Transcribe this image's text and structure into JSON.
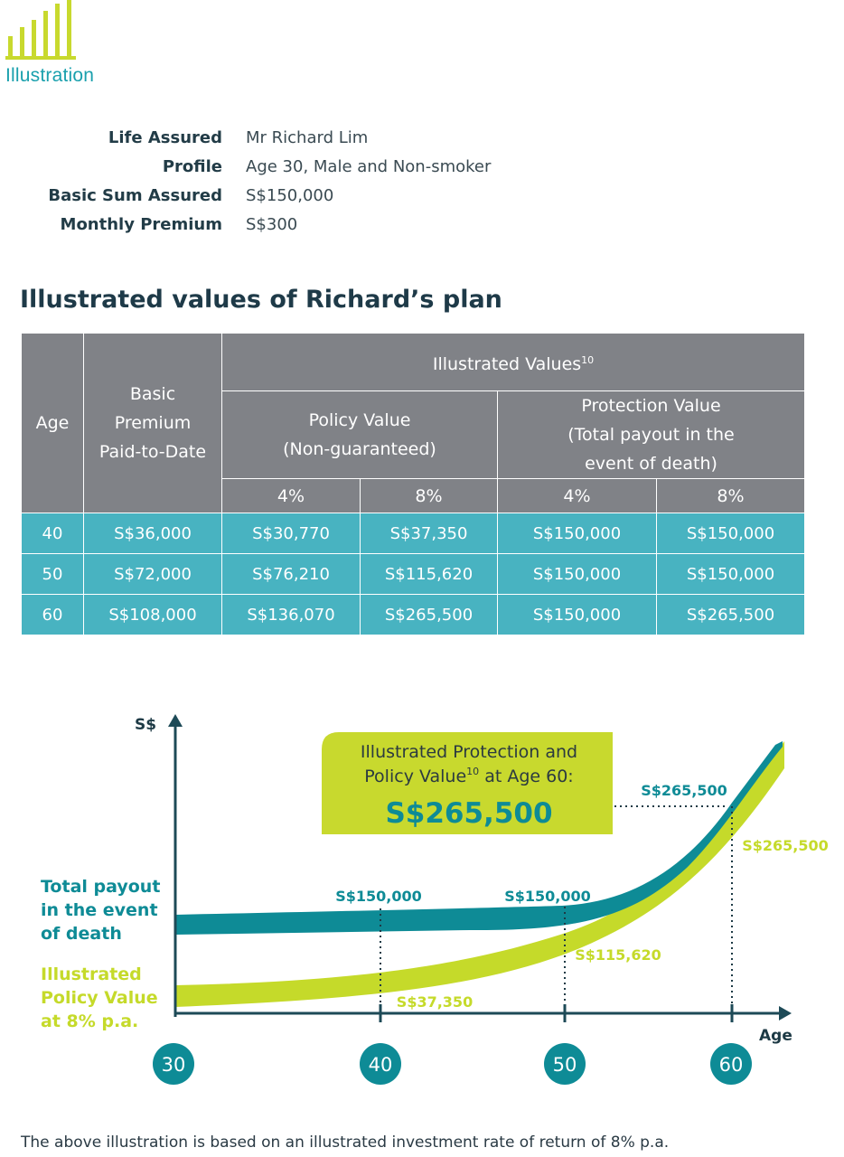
{
  "header": {
    "icon": "bar-chart-icon",
    "label": "Illustration",
    "accent_color": "#c8d92e",
    "teal_color": "#1aa0ad"
  },
  "info": {
    "rows": [
      {
        "key": "Life Assured",
        "value": "Mr Richard Lim"
      },
      {
        "key": "Profile",
        "value": "Age 30, Male and Non-smoker"
      },
      {
        "key": "Basic Sum Assured",
        "value": "S$150,000"
      },
      {
        "key": "Monthly Premium",
        "value": "S$300"
      }
    ]
  },
  "section_title": "Illustrated values of Richard’s plan",
  "table": {
    "col_age": "Age",
    "col_premium_l1": "Basic",
    "col_premium_l2": "Premium",
    "col_premium_l3": "Paid-to-Date",
    "illustrated_values": "Illustrated Values",
    "illustrated_values_sup": "10",
    "policy_value_l1": "Policy Value",
    "policy_value_l2": "(Non-guaranteed)",
    "protection_value_l1": "Protection Value",
    "protection_value_l2": "(Total payout in the",
    "protection_value_l3": "event of death)",
    "rate_4": "4%",
    "rate_8": "8%",
    "header_color": "#808287",
    "row_color": "#48b3c1",
    "rows": [
      [
        "40",
        "S$36,000",
        "S$30,770",
        "S$37,350",
        "S$150,000",
        "S$150,000"
      ],
      [
        "50",
        "S$72,000",
        "S$76,210",
        "S$115,620",
        "S$150,000",
        "S$150,000"
      ],
      [
        "60",
        "S$108,000",
        "S$136,070",
        "S$265,500",
        "S$150,000",
        "S$265,500"
      ]
    ]
  },
  "chart": {
    "y_axis_label": "S$",
    "x_axis_label": "Age",
    "ages": [
      "30",
      "40",
      "50",
      "60"
    ],
    "callout_l1": "Illustrated Protection and",
    "callout_l2a": "Policy Value",
    "callout_l2_sup": "10",
    "callout_l2b": " at Age 60:",
    "callout_value": "S$265,500",
    "legend_payout": [
      "Total payout",
      "in the event",
      "of death"
    ],
    "legend_policy": [
      "Illustrated",
      "Policy Value",
      "at 8% p.a."
    ],
    "payout_labels": [
      "S$150,000",
      "S$150,000",
      "S$265,500"
    ],
    "policy_labels": [
      "S$37,350",
      "S$115,620",
      "S$265,500"
    ],
    "payout_color": "#0e8b96",
    "policy_color": "#c5da2a"
  },
  "chart_data": {
    "type": "area",
    "x": [
      40,
      50,
      60
    ],
    "xlabel": "Age",
    "ylabel": "S$",
    "series": [
      {
        "name": "Total payout in the event of death",
        "values": [
          150000,
          150000,
          265500
        ]
      },
      {
        "name": "Illustrated Policy Value at 8% p.a.",
        "values": [
          37350,
          115620,
          265500
        ]
      }
    ]
  },
  "footnote": "The above illustration is based on an illustrated investment rate of return of 8% p.a."
}
